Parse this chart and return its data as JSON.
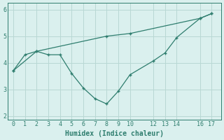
{
  "line1_x": [
    0,
    1,
    2,
    8,
    10,
    16,
    17
  ],
  "line1_y": [
    3.7,
    4.3,
    4.43,
    5.0,
    5.1,
    5.67,
    5.85
  ],
  "line2_x": [
    0,
    2,
    3,
    4,
    5,
    6,
    7,
    8,
    9,
    10,
    12,
    13,
    14,
    16,
    17
  ],
  "line2_y": [
    3.7,
    4.43,
    4.3,
    4.3,
    3.6,
    3.05,
    2.65,
    2.45,
    2.93,
    3.55,
    4.07,
    4.37,
    4.95,
    5.67,
    5.85
  ],
  "line_color": "#2e7d6e",
  "bg_color": "#daf0ee",
  "grid_color": "#b8d8d4",
  "xlabel": "Humidex (Indice chaleur)",
  "xticks": [
    0,
    1,
    2,
    3,
    4,
    5,
    6,
    7,
    8,
    9,
    10,
    12,
    13,
    14,
    16,
    17
  ],
  "yticks": [
    2,
    3,
    4,
    5,
    6
  ],
  "xlim": [
    -0.5,
    17.8
  ],
  "ylim": [
    1.85,
    6.25
  ]
}
